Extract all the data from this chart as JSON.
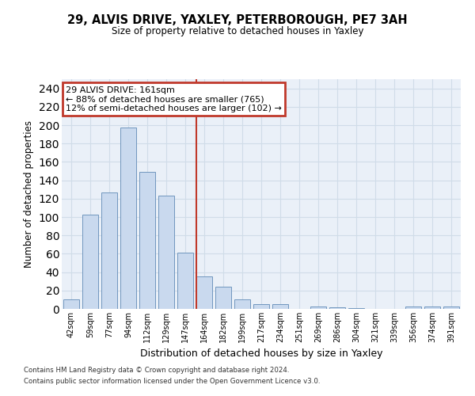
{
  "title_line1": "29, ALVIS DRIVE, YAXLEY, PETERBOROUGH, PE7 3AH",
  "title_line2": "Size of property relative to detached houses in Yaxley",
  "xlabel": "Distribution of detached houses by size in Yaxley",
  "ylabel": "Number of detached properties",
  "categories": [
    "42sqm",
    "59sqm",
    "77sqm",
    "94sqm",
    "112sqm",
    "129sqm",
    "147sqm",
    "164sqm",
    "182sqm",
    "199sqm",
    "217sqm",
    "234sqm",
    "251sqm",
    "269sqm",
    "286sqm",
    "304sqm",
    "321sqm",
    "339sqm",
    "356sqm",
    "374sqm",
    "391sqm"
  ],
  "values": [
    10,
    103,
    127,
    197,
    149,
    123,
    61,
    35,
    24,
    10,
    5,
    5,
    0,
    3,
    2,
    1,
    0,
    0,
    3,
    3,
    3
  ],
  "bar_color": "#c9d9ee",
  "bar_edge_color": "#7096be",
  "vline_color": "#c0392b",
  "annotation_text": "29 ALVIS DRIVE: 161sqm\n← 88% of detached houses are smaller (765)\n12% of semi-detached houses are larger (102) →",
  "annotation_box_color": "#c0392b",
  "ylim": [
    0,
    250
  ],
  "yticks": [
    0,
    20,
    40,
    60,
    80,
    100,
    120,
    140,
    160,
    180,
    200,
    220,
    240
  ],
  "grid_color": "#d0dce8",
  "background_color": "#eaf0f8",
  "footer_line1": "Contains HM Land Registry data © Crown copyright and database right 2024.",
  "footer_line2": "Contains public sector information licensed under the Open Government Licence v3.0.",
  "fig_width": 6.0,
  "fig_height": 5.0,
  "dpi": 100
}
